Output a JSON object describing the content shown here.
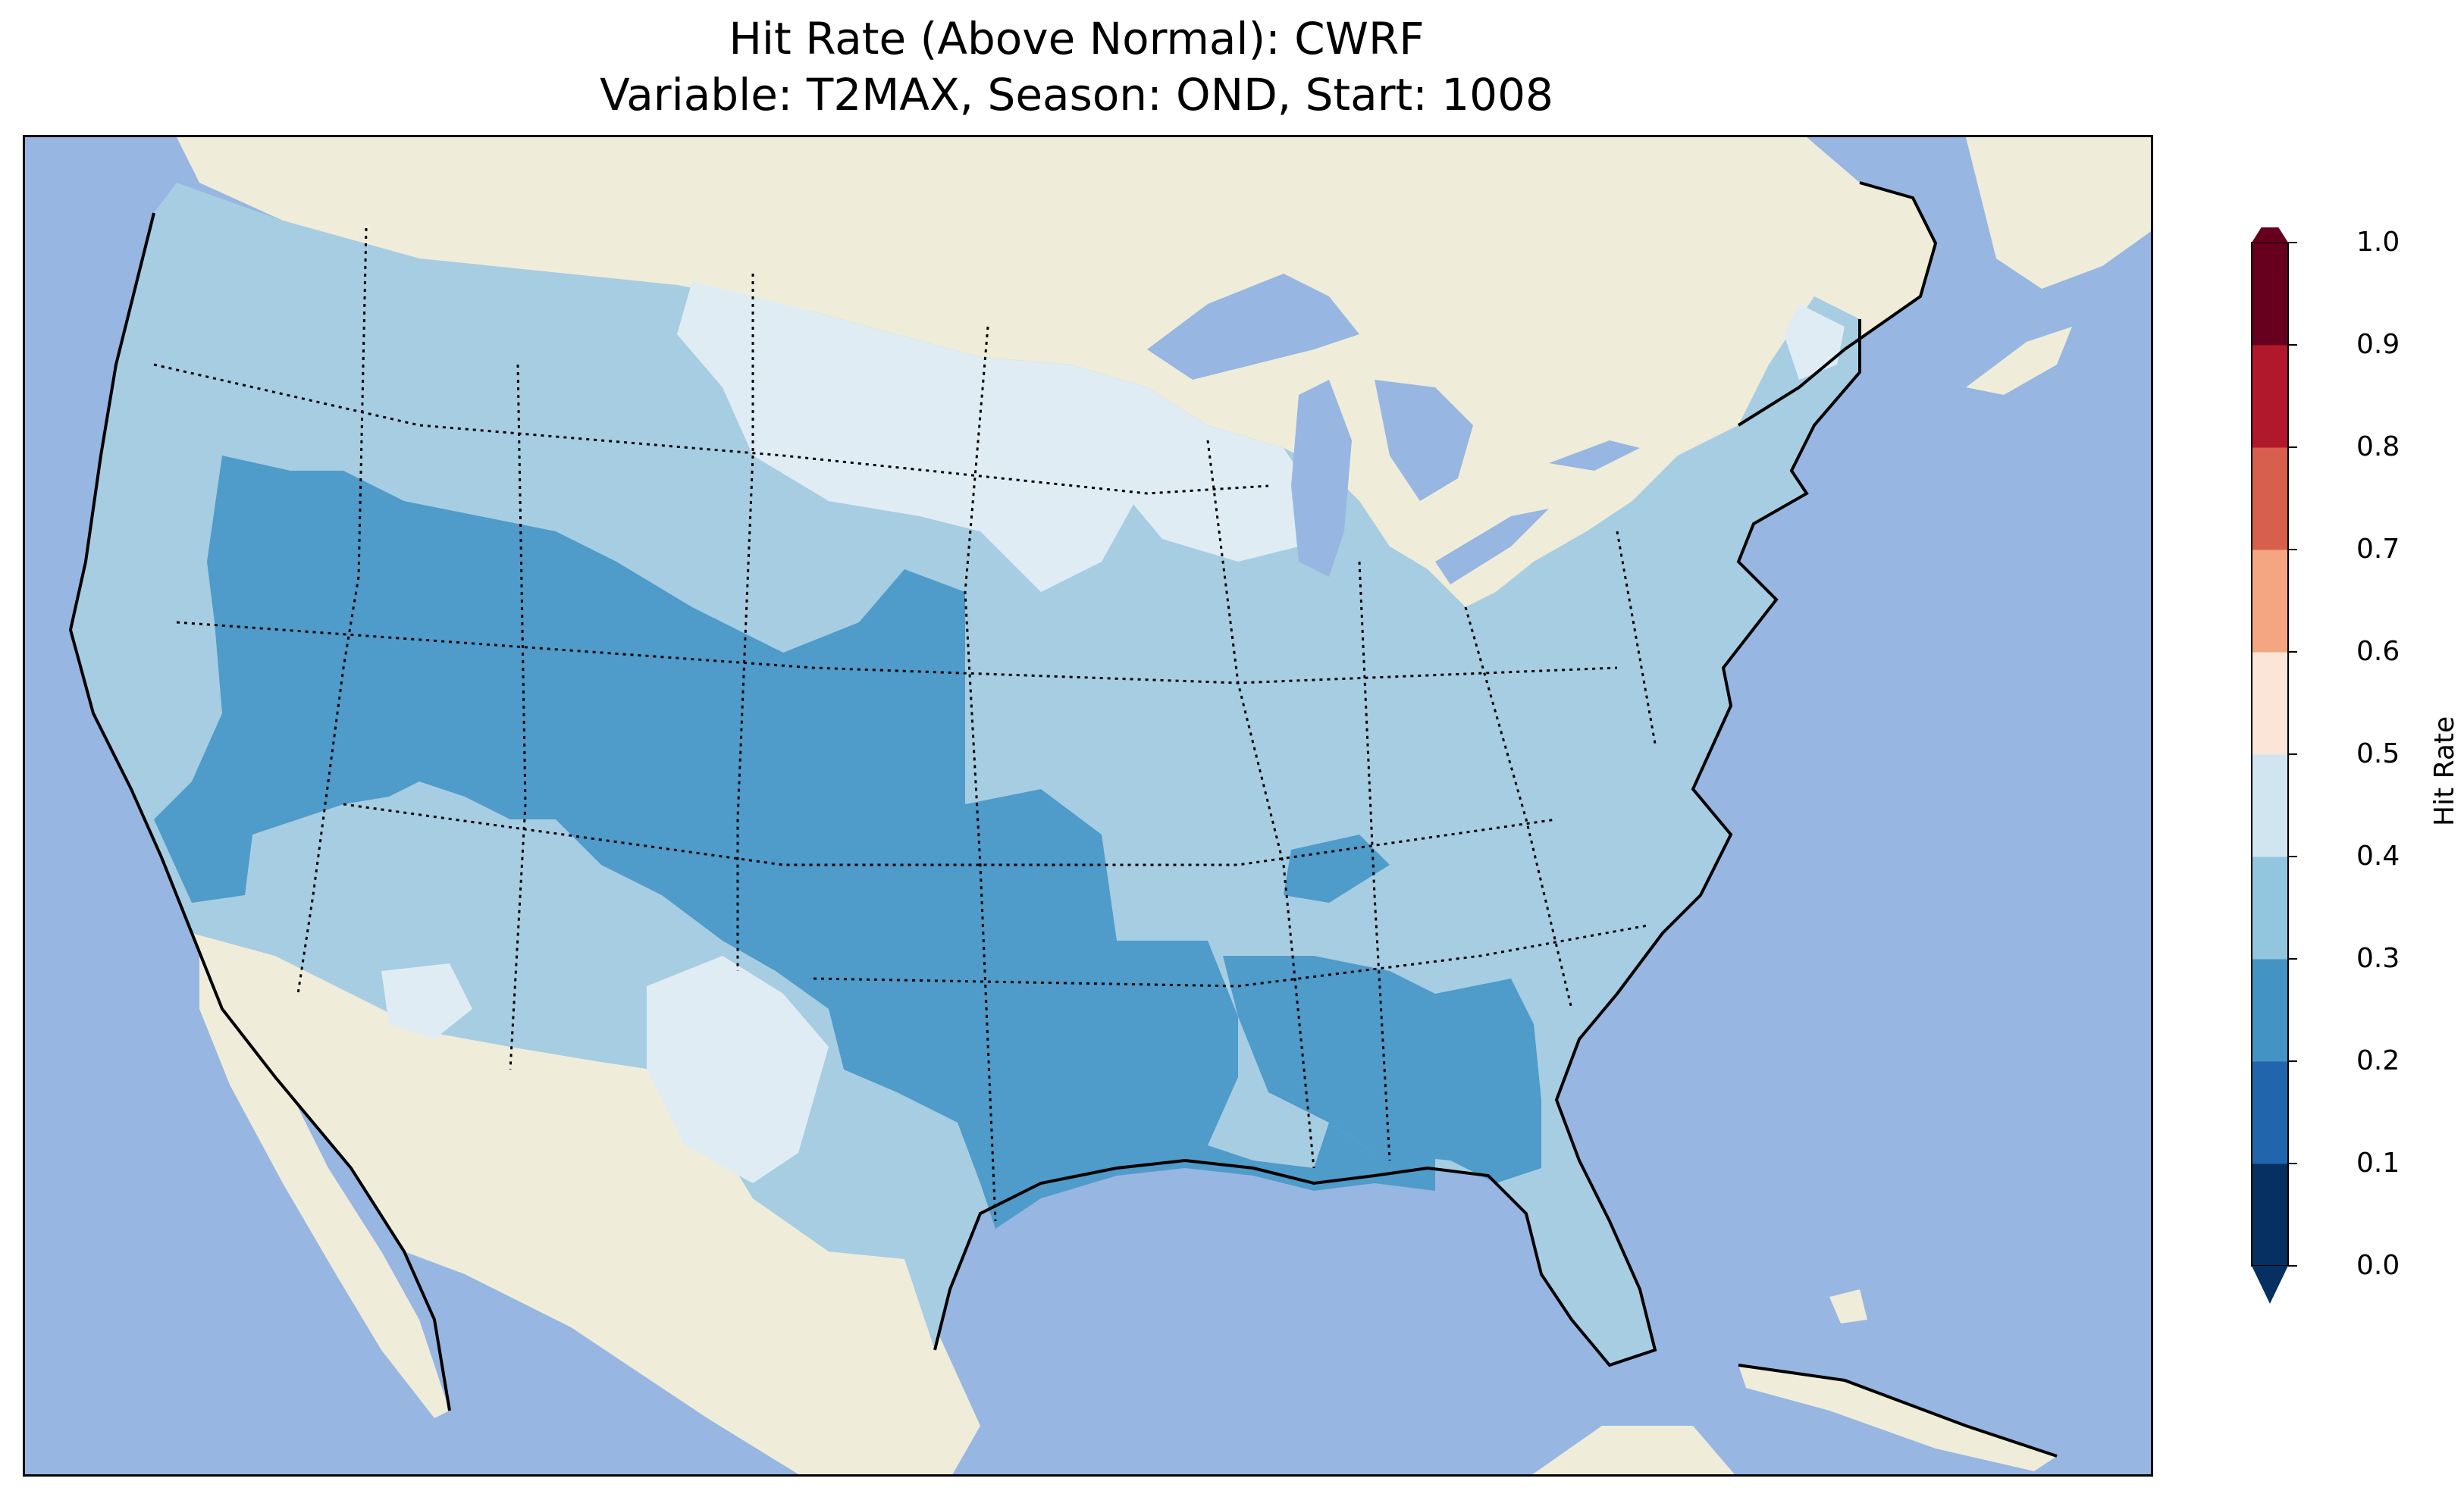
{
  "title": {
    "line1": "Hit Rate (Above Normal): CWRF",
    "line2": "Variable: T2MAX, Season: OND, Start: 1008"
  },
  "map": {
    "ocean_color": "#97b6e1",
    "land_color": "#efedda",
    "regions": [
      {
        "name": "0.2-0.3",
        "color": "#4f9bca"
      },
      {
        "name": "0.3-0.4",
        "color": "#a7cde3"
      },
      {
        "name": "0.4-0.5",
        "color": "#e0ecf3"
      }
    ]
  },
  "colorbar": {
    "label": "Hit Rate",
    "ticks": [
      "0.0",
      "0.1",
      "0.2",
      "0.3",
      "0.4",
      "0.5",
      "0.6",
      "0.7",
      "0.8",
      "0.9",
      "1.0"
    ],
    "colors": [
      "#053061",
      "#2166ac",
      "#4393c3",
      "#92c5de",
      "#d1e5f0",
      "#fbe5d8",
      "#f4a582",
      "#d6604d",
      "#b2182b",
      "#67001f"
    ]
  }
}
